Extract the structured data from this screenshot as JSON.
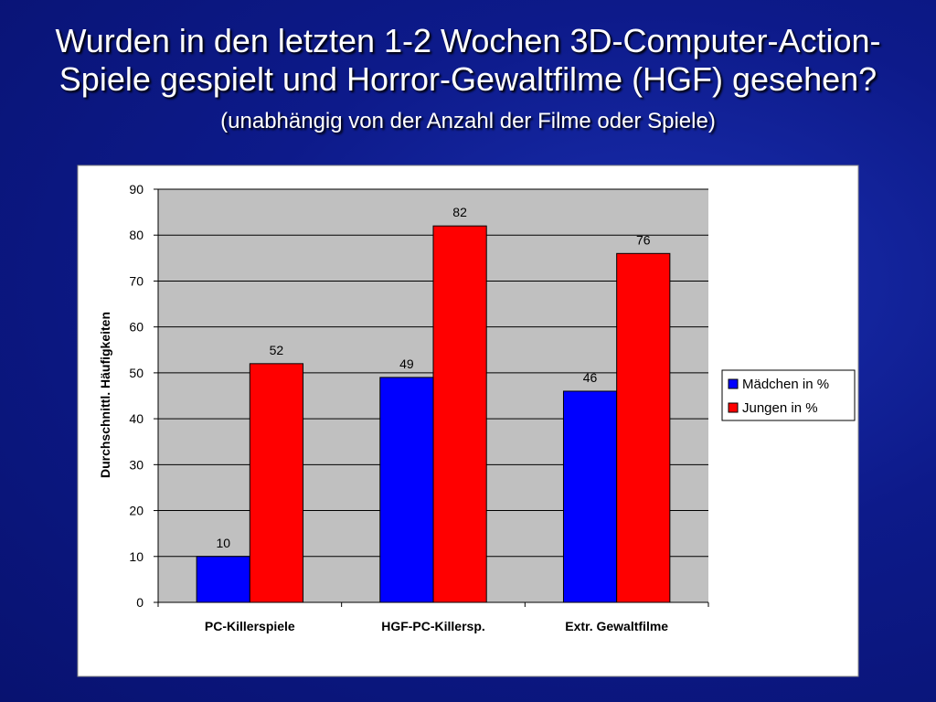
{
  "chart_data": {
    "type": "bar",
    "title_lines": [
      "Wurden in den letzten 1-2 Wochen 3D-Computer-Action-",
      "Spiele gespielt  und Horror-Gewaltfilme (HGF) gesehen?"
    ],
    "subtitle": "(unabhängig von der Anzahl der Filme oder Spiele)",
    "y_label": "Durchschnittl. Häufigkeiten",
    "categories": [
      "PC-Killerspiele",
      "HGF-PC-Killersp.",
      "Extr. Gewaltfilme"
    ],
    "series": [
      {
        "name": "Mädchen in %",
        "color": "#0000ff",
        "values": [
          10,
          49,
          46
        ]
      },
      {
        "name": "Jungen in %",
        "color": "#ff0000",
        "values": [
          52,
          82,
          76
        ]
      }
    ],
    "ylim": [
      0,
      90
    ],
    "yticks": [
      0,
      10,
      20,
      30,
      40,
      50,
      60,
      70,
      80,
      90
    ],
    "grid": true,
    "legend": "right"
  }
}
